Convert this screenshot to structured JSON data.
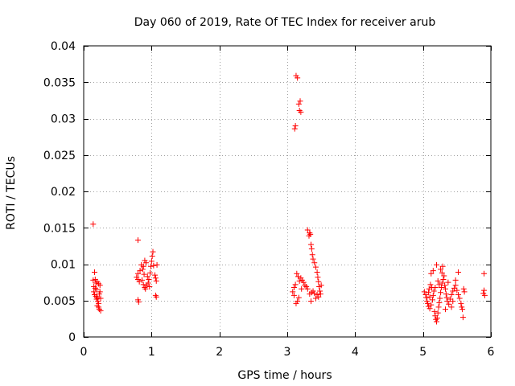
{
  "chart_data": {
    "type": "scatter",
    "title": "Day 060 of 2019, Rate Of TEC Index for receiver arub",
    "xlabel": "GPS time / hours",
    "ylabel": "ROTI / TECUs",
    "xlim": [
      0,
      6
    ],
    "ylim": [
      0,
      0.04
    ],
    "xticks": [
      0,
      1,
      2,
      3,
      4,
      5,
      6
    ],
    "xtick_labels": [
      "0",
      "1",
      "2",
      "3",
      "4",
      "5",
      "6"
    ],
    "yticks": [
      0,
      0.005,
      0.01,
      0.015,
      0.02,
      0.025,
      0.03,
      0.035,
      0.04
    ],
    "ytick_labels": [
      "0",
      "0.005",
      "0.01",
      "0.015",
      "0.02",
      "0.025",
      "0.03",
      "0.035",
      "0.04"
    ],
    "grid": true,
    "marker": "+",
    "color": "#ff0000",
    "series": [
      {
        "name": "ROTI",
        "points": [
          [
            0.14,
            0.0155
          ],
          [
            0.16,
            0.0089
          ],
          [
            0.14,
            0.0078
          ],
          [
            0.17,
            0.0079
          ],
          [
            0.2,
            0.0076
          ],
          [
            0.22,
            0.0073
          ],
          [
            0.24,
            0.0071
          ],
          [
            0.15,
            0.0062
          ],
          [
            0.16,
            0.0058
          ],
          [
            0.18,
            0.0056
          ],
          [
            0.19,
            0.0052
          ],
          [
            0.2,
            0.0054
          ],
          [
            0.21,
            0.0049
          ],
          [
            0.22,
            0.0046
          ],
          [
            0.2,
            0.0043
          ],
          [
            0.22,
            0.0041
          ],
          [
            0.23,
            0.0038
          ],
          [
            0.25,
            0.0036
          ],
          [
            0.24,
            0.0062
          ],
          [
            0.17,
            0.0067
          ],
          [
            0.19,
            0.0065
          ],
          [
            0.23,
            0.0059
          ],
          [
            0.25,
            0.0053
          ],
          [
            0.18,
            0.0074
          ],
          [
            0.15,
            0.0069
          ],
          [
            0.8,
            0.0133
          ],
          [
            0.8,
            0.0087
          ],
          [
            0.78,
            0.0082
          ],
          [
            0.8,
            0.0079
          ],
          [
            0.82,
            0.0076
          ],
          [
            0.81,
            0.0048
          ],
          [
            0.8,
            0.0051
          ],
          [
            0.85,
            0.0099
          ],
          [
            0.87,
            0.0093
          ],
          [
            0.88,
            0.0097
          ],
          [
            0.9,
            0.0105
          ],
          [
            0.92,
            0.0102
          ],
          [
            0.88,
            0.0072
          ],
          [
            0.9,
            0.0068
          ],
          [
            0.91,
            0.0066
          ],
          [
            0.93,
            0.0071
          ],
          [
            0.95,
            0.0074
          ],
          [
            0.97,
            0.0069
          ],
          [
            0.99,
            0.0097
          ],
          [
            1.0,
            0.0104
          ],
          [
            1.01,
            0.0111
          ],
          [
            1.02,
            0.0117
          ],
          [
            0.98,
            0.0088
          ],
          [
            1.03,
            0.0098
          ],
          [
            1.05,
            0.0085
          ],
          [
            1.06,
            0.0081
          ],
          [
            1.07,
            0.0077
          ],
          [
            1.06,
            0.0057
          ],
          [
            1.07,
            0.0055
          ],
          [
            0.94,
            0.0083
          ],
          [
            0.96,
            0.0079
          ],
          [
            0.89,
            0.0086
          ],
          [
            0.86,
            0.0078
          ],
          [
            0.83,
            0.0091
          ],
          [
            1.08,
            0.0099
          ],
          [
            3.13,
            0.0359
          ],
          [
            3.15,
            0.0356
          ],
          [
            3.19,
            0.0324
          ],
          [
            3.17,
            0.032
          ],
          [
            3.18,
            0.0311
          ],
          [
            3.2,
            0.0309
          ],
          [
            3.12,
            0.029
          ],
          [
            3.11,
            0.0286
          ],
          [
            3.3,
            0.0147
          ],
          [
            3.33,
            0.0143
          ],
          [
            3.32,
            0.0139
          ],
          [
            3.34,
            0.0141
          ],
          [
            3.35,
            0.0127
          ],
          [
            3.36,
            0.0121
          ],
          [
            3.37,
            0.0113
          ],
          [
            3.38,
            0.0107
          ],
          [
            3.4,
            0.0102
          ],
          [
            3.42,
            0.0096
          ],
          [
            3.44,
            0.0089
          ],
          [
            3.45,
            0.0082
          ],
          [
            3.46,
            0.0076
          ],
          [
            3.47,
            0.0069
          ],
          [
            3.48,
            0.0063
          ],
          [
            3.44,
            0.0058
          ],
          [
            3.42,
            0.0053
          ],
          [
            3.46,
            0.0055
          ],
          [
            3.4,
            0.006
          ],
          [
            3.38,
            0.0063
          ],
          [
            3.36,
            0.0061
          ],
          [
            3.33,
            0.0059
          ],
          [
            3.3,
            0.0066
          ],
          [
            3.28,
            0.0069
          ],
          [
            3.26,
            0.0071
          ],
          [
            3.24,
            0.0075
          ],
          [
            3.22,
            0.0078
          ],
          [
            3.2,
            0.0081
          ],
          [
            3.18,
            0.0077
          ],
          [
            3.16,
            0.0083
          ],
          [
            3.14,
            0.0087
          ],
          [
            3.12,
            0.0072
          ],
          [
            3.1,
            0.0068
          ],
          [
            3.08,
            0.0062
          ],
          [
            3.1,
            0.0057
          ],
          [
            3.13,
            0.0046
          ],
          [
            3.15,
            0.0049
          ],
          [
            3.17,
            0.0054
          ],
          [
            3.35,
            0.0049
          ],
          [
            3.5,
            0.0071
          ],
          [
            3.49,
            0.0059
          ],
          [
            3.21,
            0.0066
          ],
          [
            5.02,
            0.0062
          ],
          [
            5.04,
            0.0058
          ],
          [
            5.05,
            0.0054
          ],
          [
            5.06,
            0.0049
          ],
          [
            5.07,
            0.0046
          ],
          [
            5.08,
            0.0042
          ],
          [
            5.1,
            0.0039
          ],
          [
            5.12,
            0.0044
          ],
          [
            5.14,
            0.0051
          ],
          [
            5.15,
            0.0057
          ],
          [
            5.16,
            0.0063
          ],
          [
            5.13,
            0.0068
          ],
          [
            5.11,
            0.0072
          ],
          [
            5.09,
            0.0066
          ],
          [
            5.17,
            0.0035
          ],
          [
            5.18,
            0.0029
          ],
          [
            5.19,
            0.0024
          ],
          [
            5.2,
            0.0021
          ],
          [
            5.21,
            0.0026
          ],
          [
            5.22,
            0.0033
          ],
          [
            5.23,
            0.0041
          ],
          [
            5.24,
            0.0047
          ],
          [
            5.25,
            0.0053
          ],
          [
            5.26,
            0.0061
          ],
          [
            5.27,
            0.0068
          ],
          [
            5.28,
            0.0074
          ],
          [
            5.3,
            0.0079
          ],
          [
            5.31,
            0.0084
          ],
          [
            5.26,
            0.0093
          ],
          [
            5.28,
            0.0088
          ],
          [
            5.29,
            0.0097
          ],
          [
            5.32,
            0.0071
          ],
          [
            5.33,
            0.0066
          ],
          [
            5.34,
            0.0059
          ],
          [
            5.35,
            0.0054
          ],
          [
            5.36,
            0.0049
          ],
          [
            5.38,
            0.0045
          ],
          [
            5.4,
            0.0052
          ],
          [
            5.42,
            0.0058
          ],
          [
            5.44,
            0.0063
          ],
          [
            5.46,
            0.0067
          ],
          [
            5.48,
            0.0071
          ],
          [
            5.5,
            0.0064
          ],
          [
            5.52,
            0.0058
          ],
          [
            5.54,
            0.0053
          ],
          [
            5.56,
            0.0046
          ],
          [
            5.57,
            0.0041
          ],
          [
            5.58,
            0.0038
          ],
          [
            5.59,
            0.0027
          ],
          [
            5.6,
            0.0066
          ],
          [
            5.61,
            0.0062
          ],
          [
            5.52,
            0.0089
          ],
          [
            5.48,
            0.0078
          ],
          [
            5.44,
            0.0049
          ],
          [
            5.42,
            0.0041
          ],
          [
            5.2,
            0.0099
          ],
          [
            5.15,
            0.0091
          ],
          [
            5.12,
            0.0087
          ],
          [
            5.22,
            0.0077
          ],
          [
            5.24,
            0.0072
          ],
          [
            5.18,
            0.0068
          ],
          [
            5.1,
            0.0055
          ],
          [
            5.08,
            0.0061
          ],
          [
            5.33,
            0.0038
          ],
          [
            5.37,
            0.0075
          ],
          [
            5.9,
            0.0087
          ],
          [
            5.9,
            0.0064
          ],
          [
            5.89,
            0.006
          ],
          [
            5.91,
            0.0057
          ]
        ]
      }
    ]
  }
}
